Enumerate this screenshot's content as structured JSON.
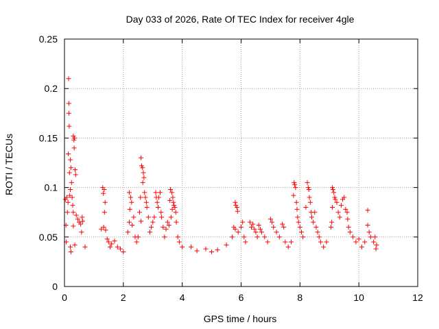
{
  "chart_data": {
    "type": "scatter",
    "title": "Day 033 of 2026, Rate Of TEC Index for receiver 4gle",
    "xlabel": "GPS time / hours",
    "ylabel": "ROTI / TECUs",
    "xlim": [
      0,
      12
    ],
    "ylim": [
      0,
      0.25
    ],
    "x_ticks": [
      0,
      2,
      4,
      6,
      8,
      10,
      12
    ],
    "x_tick_labels": [
      "0",
      "2",
      "4",
      "6",
      "8",
      "10",
      "12"
    ],
    "y_ticks": [
      0,
      0.05,
      0.1,
      0.15,
      0.2,
      0.25
    ],
    "y_tick_labels": [
      "0",
      "0.05",
      "0.1",
      "0.15",
      "0.2",
      "0.25"
    ],
    "grid": true,
    "marker": "+",
    "color": "#ff0000",
    "series": [
      {
        "name": "ROTI",
        "points": [
          [
            0.03,
            0.088
          ],
          [
            0.05,
            0.062
          ],
          [
            0.06,
            0.045
          ],
          [
            0.08,
            0.09
          ],
          [
            0.1,
            0.075
          ],
          [
            0.12,
            0.085
          ],
          [
            0.14,
            0.21
          ],
          [
            0.15,
            0.185
          ],
          [
            0.15,
            0.175
          ],
          [
            0.16,
            0.162
          ],
          [
            0.13,
            0.134
          ],
          [
            0.2,
            0.128
          ],
          [
            0.17,
            0.115
          ],
          [
            0.22,
            0.12
          ],
          [
            0.24,
            0.105
          ],
          [
            0.2,
            0.098
          ],
          [
            0.18,
            0.092
          ],
          [
            0.26,
            0.09
          ],
          [
            0.3,
            0.152
          ],
          [
            0.32,
            0.148
          ],
          [
            0.34,
            0.15
          ],
          [
            0.33,
            0.14
          ],
          [
            0.36,
            0.118
          ],
          [
            0.38,
            0.113
          ],
          [
            0.28,
            0.082
          ],
          [
            0.3,
            0.075
          ],
          [
            0.4,
            0.072
          ],
          [
            0.45,
            0.068
          ],
          [
            0.5,
            0.065
          ],
          [
            0.55,
            0.063
          ],
          [
            0.6,
            0.07
          ],
          [
            0.2,
            0.04
          ],
          [
            0.22,
            0.035
          ],
          [
            0.35,
            0.042
          ],
          [
            0.7,
            0.04
          ],
          [
            0.3,
            0.061
          ],
          [
            0.62,
            0.066
          ],
          [
            0.58,
            0.055
          ],
          [
            1.3,
            0.1
          ],
          [
            1.35,
            0.098
          ],
          [
            1.32,
            0.094
          ],
          [
            1.38,
            0.085
          ],
          [
            1.36,
            0.075
          ],
          [
            1.33,
            0.06
          ],
          [
            1.4,
            0.057
          ],
          [
            1.45,
            0.048
          ],
          [
            1.5,
            0.045
          ],
          [
            1.55,
            0.04
          ],
          [
            1.6,
            0.043
          ],
          [
            1.7,
            0.046
          ],
          [
            1.25,
            0.058
          ],
          [
            1.8,
            0.04
          ],
          [
            1.9,
            0.038
          ],
          [
            2.0,
            0.035
          ],
          [
            2.2,
            0.095
          ],
          [
            2.25,
            0.09
          ],
          [
            2.22,
            0.078
          ],
          [
            2.28,
            0.085
          ],
          [
            2.2,
            0.065
          ],
          [
            2.3,
            0.062
          ],
          [
            2.35,
            0.07
          ],
          [
            2.15,
            0.055
          ],
          [
            2.4,
            0.05
          ],
          [
            2.45,
            0.045
          ],
          [
            2.6,
            0.13
          ],
          [
            2.62,
            0.122
          ],
          [
            2.65,
            0.12
          ],
          [
            2.68,
            0.115
          ],
          [
            2.7,
            0.11
          ],
          [
            2.66,
            0.105
          ],
          [
            2.72,
            0.095
          ],
          [
            2.75,
            0.09
          ],
          [
            2.78,
            0.085
          ],
          [
            2.58,
            0.09
          ],
          [
            2.8,
            0.08
          ],
          [
            2.55,
            0.075
          ],
          [
            2.85,
            0.07
          ],
          [
            2.6,
            0.066
          ],
          [
            2.5,
            0.05
          ],
          [
            2.9,
            0.055
          ],
          [
            2.95,
            0.06
          ],
          [
            3.0,
            0.065
          ],
          [
            3.05,
            0.07
          ],
          [
            3.1,
            0.095
          ],
          [
            3.12,
            0.09
          ],
          [
            3.15,
            0.085
          ],
          [
            3.18,
            0.08
          ],
          [
            3.2,
            0.09
          ],
          [
            3.25,
            0.095
          ],
          [
            3.28,
            0.075
          ],
          [
            3.3,
            0.07
          ],
          [
            3.35,
            0.06
          ],
          [
            3.4,
            0.05
          ],
          [
            3.45,
            0.058
          ],
          [
            3.5,
            0.065
          ],
          [
            3.55,
            0.062
          ],
          [
            3.6,
            0.098
          ],
          [
            3.65,
            0.095
          ],
          [
            3.68,
            0.09
          ],
          [
            3.7,
            0.085
          ],
          [
            3.72,
            0.082
          ],
          [
            3.75,
            0.08
          ],
          [
            3.78,
            0.075
          ],
          [
            3.62,
            0.07
          ],
          [
            3.8,
            0.065
          ],
          [
            3.85,
            0.05
          ],
          [
            3.9,
            0.045
          ],
          [
            4.0,
            0.04
          ],
          [
            3.58,
            0.087
          ],
          [
            3.66,
            0.078
          ],
          [
            4.3,
            0.04
          ],
          [
            4.5,
            0.036
          ],
          [
            4.8,
            0.038
          ],
          [
            5.0,
            0.035
          ],
          [
            5.2,
            0.037
          ],
          [
            5.5,
            0.042
          ],
          [
            5.8,
            0.085
          ],
          [
            5.82,
            0.082
          ],
          [
            5.86,
            0.08
          ],
          [
            5.88,
            0.076
          ],
          [
            5.75,
            0.06
          ],
          [
            5.8,
            0.058
          ],
          [
            5.7,
            0.05
          ],
          [
            5.9,
            0.055
          ],
          [
            6.0,
            0.06
          ],
          [
            6.05,
            0.065
          ],
          [
            6.1,
            0.05
          ],
          [
            6.15,
            0.045
          ],
          [
            6.3,
            0.065
          ],
          [
            6.35,
            0.06
          ],
          [
            6.4,
            0.063
          ],
          [
            6.45,
            0.058
          ],
          [
            6.5,
            0.055
          ],
          [
            6.55,
            0.05
          ],
          [
            6.6,
            0.062
          ],
          [
            6.65,
            0.058
          ],
          [
            6.7,
            0.055
          ],
          [
            6.8,
            0.05
          ],
          [
            6.9,
            0.045
          ],
          [
            7.0,
            0.068
          ],
          [
            7.05,
            0.065
          ],
          [
            7.1,
            0.06
          ],
          [
            7.2,
            0.055
          ],
          [
            7.3,
            0.05
          ],
          [
            7.4,
            0.063
          ],
          [
            7.45,
            0.06
          ],
          [
            7.5,
            0.045
          ],
          [
            7.6,
            0.04
          ],
          [
            7.7,
            0.045
          ],
          [
            7.8,
            0.105
          ],
          [
            7.82,
            0.103
          ],
          [
            7.85,
            0.1
          ],
          [
            7.78,
            0.092
          ],
          [
            7.88,
            0.085
          ],
          [
            7.9,
            0.078
          ],
          [
            7.92,
            0.07
          ],
          [
            7.95,
            0.065
          ],
          [
            8.0,
            0.06
          ],
          [
            8.05,
            0.055
          ],
          [
            8.1,
            0.05
          ],
          [
            8.25,
            0.105
          ],
          [
            8.28,
            0.1
          ],
          [
            8.3,
            0.098
          ],
          [
            8.32,
            0.09
          ],
          [
            8.35,
            0.085
          ],
          [
            8.2,
            0.08
          ],
          [
            8.38,
            0.075
          ],
          [
            8.4,
            0.07
          ],
          [
            8.45,
            0.065
          ],
          [
            8.5,
            0.075
          ],
          [
            8.55,
            0.06
          ],
          [
            8.6,
            0.055
          ],
          [
            8.65,
            0.05
          ],
          [
            8.7,
            0.045
          ],
          [
            8.8,
            0.04
          ],
          [
            8.9,
            0.045
          ],
          [
            9.1,
            0.1
          ],
          [
            9.12,
            0.098
          ],
          [
            9.15,
            0.095
          ],
          [
            9.18,
            0.09
          ],
          [
            9.2,
            0.088
          ],
          [
            9.1,
            0.08
          ],
          [
            9.25,
            0.085
          ],
          [
            9.3,
            0.075
          ],
          [
            9.35,
            0.07
          ],
          [
            9.4,
            0.082
          ],
          [
            9.45,
            0.088
          ],
          [
            9.5,
            0.09
          ],
          [
            9.55,
            0.078
          ],
          [
            9.6,
            0.075
          ],
          [
            9.08,
            0.065
          ],
          [
            9.05,
            0.06
          ],
          [
            9.62,
            0.068
          ],
          [
            9.65,
            0.06
          ],
          [
            9.7,
            0.055
          ],
          [
            9.8,
            0.05
          ],
          [
            9.9,
            0.045
          ],
          [
            10.0,
            0.048
          ],
          [
            10.1,
            0.04
          ],
          [
            10.2,
            0.045
          ],
          [
            10.3,
            0.062
          ],
          [
            10.35,
            0.055
          ],
          [
            10.4,
            0.05
          ],
          [
            10.5,
            0.045
          ],
          [
            10.3,
            0.077
          ],
          [
            10.55,
            0.05
          ],
          [
            10.6,
            0.042
          ],
          [
            10.58,
            0.038
          ]
        ]
      }
    ]
  }
}
